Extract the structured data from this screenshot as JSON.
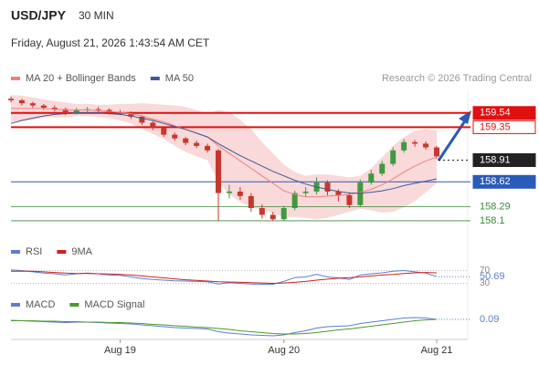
{
  "header": {
    "symbol": "USD/JPY",
    "interval": "30 MIN",
    "datetime": "Friday, August 21, 2026 1:43:54 AM CET",
    "copyright": "Research © 2026 Trading Central"
  },
  "chart_data": [
    {
      "type": "candlestick",
      "categories": [
        null,
        null,
        null,
        null,
        null,
        null,
        null,
        null,
        null,
        null,
        "Aug 19",
        null,
        null,
        null,
        null,
        null,
        null,
        null,
        null,
        null,
        null,
        null,
        null,
        null,
        null,
        "Aug 20",
        null,
        null,
        null,
        null,
        null,
        null,
        null,
        null,
        null,
        null,
        null,
        null,
        null,
        "Aug 21"
      ],
      "open": [
        159.73,
        159.71,
        159.67,
        159.64,
        159.61,
        159.59,
        159.54,
        159.58,
        159.59,
        159.58,
        159.55,
        159.54,
        159.49,
        159.41,
        159.34,
        159.25,
        159.2,
        159.14,
        159.1,
        159.04,
        158.47,
        158.49,
        158.43,
        158.27,
        158.18,
        158.12,
        158.27,
        158.47,
        158.49,
        158.61,
        158.49,
        158.44,
        158.31,
        158.61,
        158.73,
        158.86,
        159.04,
        159.15,
        159.13,
        159.08
      ],
      "high": [
        159.76,
        159.73,
        159.69,
        159.66,
        159.64,
        159.61,
        159.61,
        159.62,
        159.62,
        159.6,
        159.58,
        159.56,
        159.51,
        159.43,
        159.36,
        159.28,
        159.22,
        159.17,
        159.13,
        159.06,
        158.58,
        158.55,
        158.47,
        158.32,
        158.22,
        158.3,
        158.5,
        158.55,
        158.68,
        158.64,
        158.52,
        158.48,
        158.65,
        158.78,
        158.9,
        159.08,
        159.19,
        159.18,
        159.16,
        159.1
      ],
      "low": [
        159.68,
        159.64,
        159.61,
        159.58,
        159.56,
        159.51,
        159.52,
        159.55,
        159.55,
        159.52,
        159.51,
        159.46,
        159.38,
        159.31,
        159.22,
        159.17,
        159.11,
        159.07,
        159.01,
        158.1,
        158.4,
        158.38,
        158.22,
        158.13,
        158.1,
        158.1,
        158.24,
        158.42,
        158.45,
        158.44,
        158.36,
        158.27,
        158.28,
        158.58,
        158.7,
        158.83,
        159.01,
        159.09,
        159.05,
        158.93
      ],
      "close": [
        159.71,
        159.67,
        159.64,
        159.61,
        159.59,
        159.54,
        159.58,
        159.59,
        159.58,
        159.55,
        159.54,
        159.49,
        159.41,
        159.34,
        159.25,
        159.2,
        159.14,
        159.1,
        159.04,
        158.47,
        158.49,
        158.43,
        158.27,
        158.18,
        158.12,
        158.27,
        158.47,
        158.49,
        158.61,
        158.49,
        158.44,
        158.31,
        158.61,
        158.73,
        158.86,
        159.04,
        159.15,
        159.13,
        159.08,
        158.96
      ],
      "color_up": "#3f9a3f",
      "color_down": "#c8372d",
      "series": [
        {
          "name": "MA 20 + Bollinger Bands",
          "color": "#f08080",
          "band_color": "#f6c9c9",
          "values": [
            159.6,
            159.6,
            159.6,
            159.6,
            159.59,
            159.58,
            159.58,
            159.58,
            159.57,
            159.56,
            159.55,
            159.53,
            159.5,
            159.46,
            159.42,
            159.37,
            159.32,
            159.27,
            159.22,
            159.1,
            159.0,
            158.9,
            158.8,
            158.7,
            158.6,
            158.5,
            158.45,
            158.42,
            158.42,
            158.43,
            158.44,
            158.45,
            158.48,
            158.52,
            158.58,
            158.66,
            158.75,
            158.83,
            158.9,
            158.95
          ],
          "upper": [
            159.78,
            159.77,
            159.75,
            159.72,
            159.7,
            159.68,
            159.66,
            159.66,
            159.65,
            159.65,
            159.66,
            159.66,
            159.67,
            159.66,
            159.65,
            159.64,
            159.62,
            159.58,
            159.53,
            159.58,
            159.55,
            159.45,
            159.32,
            159.15,
            159.0,
            158.85,
            158.75,
            158.7,
            158.72,
            158.72,
            158.7,
            158.68,
            158.7,
            158.8,
            158.95,
            159.1,
            159.22,
            159.3,
            159.32,
            159.3
          ],
          "lower": [
            159.42,
            159.43,
            159.45,
            159.48,
            159.48,
            159.48,
            159.5,
            159.5,
            159.49,
            159.47,
            159.44,
            159.4,
            159.33,
            159.26,
            159.19,
            159.1,
            159.02,
            158.96,
            158.91,
            158.62,
            158.45,
            158.35,
            158.28,
            158.25,
            158.2,
            158.15,
            158.15,
            158.14,
            158.12,
            158.14,
            158.18,
            158.22,
            158.26,
            158.24,
            158.21,
            158.22,
            158.28,
            158.36,
            158.48,
            158.6
          ]
        },
        {
          "name": "MA 50",
          "color": "#3a5a9a",
          "values": [
            159.4,
            159.44,
            159.47,
            159.5,
            159.52,
            159.53,
            159.54,
            159.54,
            159.54,
            159.53,
            159.52,
            159.5,
            159.47,
            159.44,
            159.4,
            159.36,
            159.32,
            159.27,
            159.22,
            159.13,
            159.05,
            158.97,
            158.9,
            158.83,
            158.76,
            158.7,
            158.64,
            158.59,
            158.55,
            158.52,
            158.49,
            158.47,
            158.47,
            158.48,
            158.5,
            158.53,
            158.57,
            158.6,
            158.63,
            158.66
          ]
        }
      ],
      "levels": [
        {
          "value": 159.54,
          "color": "#e01010",
          "style": "filled",
          "line": "solid"
        },
        {
          "value": 159.35,
          "color": "#e01010",
          "style": "outlined",
          "line": "solid"
        },
        {
          "value": 158.91,
          "color": "#222222",
          "style": "filled",
          "line": "dotted"
        },
        {
          "value": 158.62,
          "color": "#2a5bb8",
          "style": "filled",
          "line": "solid"
        },
        {
          "value": 158.29,
          "color": "#3a8a3a",
          "style": "text",
          "line": "thin"
        },
        {
          "value": 158.1,
          "color": "#3a8a3a",
          "style": "text",
          "line": "thin"
        }
      ],
      "ylim": [
        157.88,
        159.83
      ]
    },
    {
      "type": "line",
      "series": [
        {
          "name": "RSI",
          "color": "#5a7fd0",
          "values": [
            72,
            70,
            66,
            62,
            60,
            56,
            60,
            62,
            60,
            56,
            55,
            50,
            45,
            42,
            40,
            38,
            37,
            36,
            35,
            28,
            32,
            30,
            28,
            27,
            27,
            36,
            48,
            50,
            58,
            50,
            47,
            42,
            56,
            60,
            63,
            68,
            70,
            66,
            62,
            50.69
          ]
        },
        {
          "name": "9MA",
          "color": "#d02020",
          "values": [
            68,
            68,
            68,
            66,
            64,
            62,
            61,
            61,
            60,
            59,
            58,
            56,
            53,
            50,
            47,
            44,
            41,
            39,
            37,
            35,
            34,
            33,
            32,
            31,
            30,
            31,
            33,
            36,
            40,
            43,
            46,
            48,
            50,
            53,
            56,
            58,
            61,
            63,
            64,
            63
          ]
        }
      ],
      "ylim": [
        17,
        103
      ],
      "yticks": [
        30,
        70
      ]
    },
    {
      "type": "line",
      "series": [
        {
          "name": "MACD",
          "color": "#5a7fd0",
          "values": [
            0.07,
            0.06,
            0.05,
            0.04,
            0.03,
            0.02,
            0.03,
            0.03,
            0.02,
            0.01,
            0,
            -0.01,
            -0.03,
            -0.05,
            -0.07,
            -0.09,
            -0.1,
            -0.11,
            -0.12,
            -0.18,
            -0.21,
            -0.23,
            -0.25,
            -0.26,
            -0.27,
            -0.25,
            -0.2,
            -0.16,
            -0.1,
            -0.07,
            -0.06,
            -0.05,
            0,
            0.03,
            0.06,
            0.09,
            0.12,
            0.13,
            0.12,
            0.09
          ]
        },
        {
          "name": "MACD Signal",
          "color": "#4a9a2a",
          "values": [
            0.06,
            0.06,
            0.06,
            0.05,
            0.05,
            0.04,
            0.04,
            0.03,
            0.03,
            0.02,
            0.02,
            0.01,
            0,
            -0.02,
            -0.03,
            -0.05,
            -0.06,
            -0.08,
            -0.09,
            -0.11,
            -0.13,
            -0.16,
            -0.18,
            -0.2,
            -0.22,
            -0.23,
            -0.23,
            -0.22,
            -0.2,
            -0.17,
            -0.14,
            -0.12,
            -0.09,
            -0.06,
            -0.03,
            0,
            0.03,
            0.06,
            0.08,
            0.09
          ]
        }
      ],
      "ylim": [
        -0.35,
        0.53
      ]
    }
  ]
}
